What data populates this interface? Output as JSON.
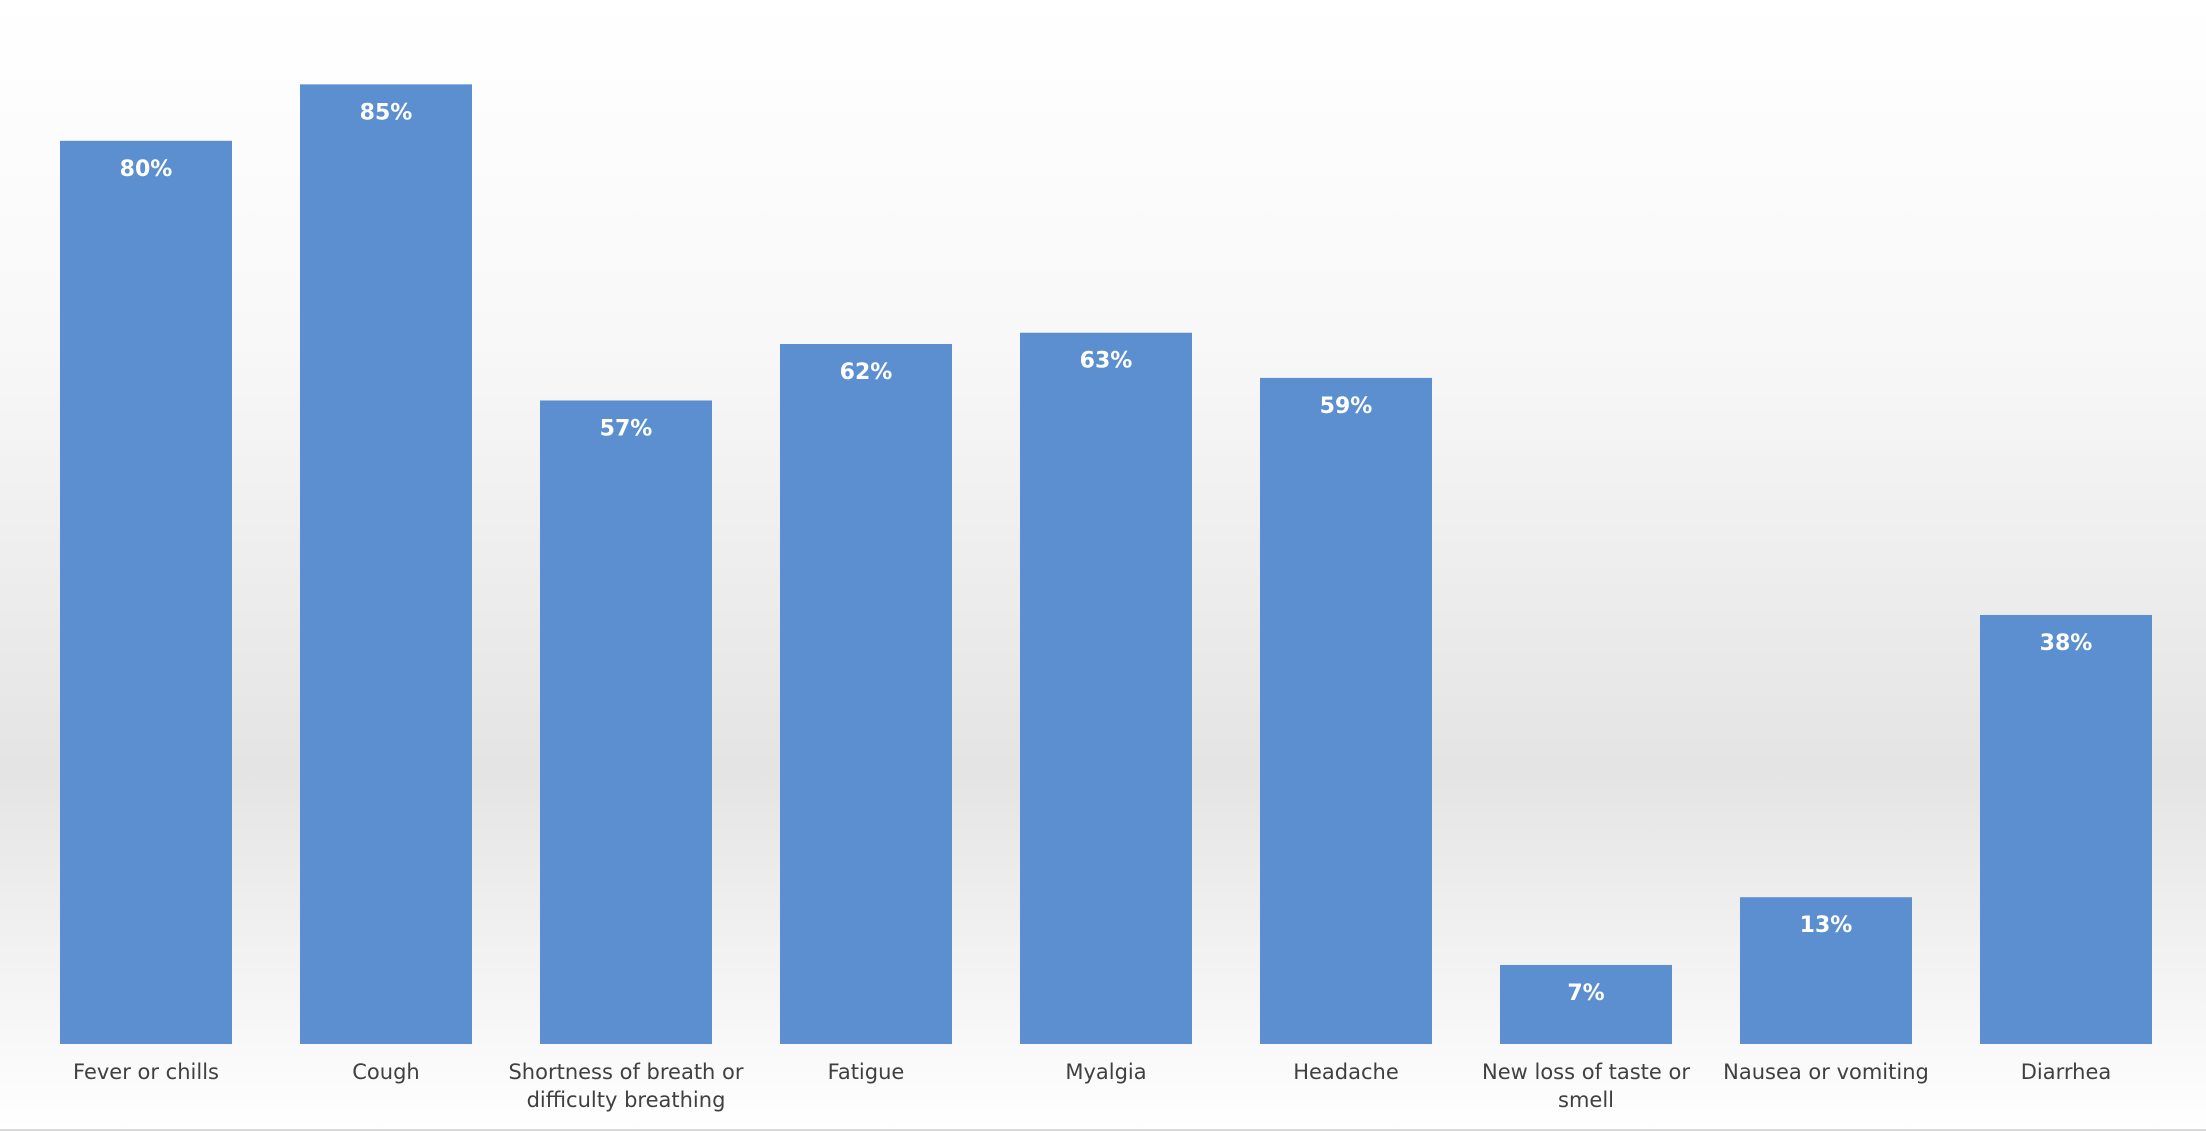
{
  "chart_data": {
    "type": "bar",
    "categories": [
      "Fever or chills",
      "Cough",
      "Shortness of breath or difficulty breathing",
      "Fatigue",
      "Myalgia",
      "Headache",
      "New loss of taste or smell",
      "Nausea or vomiting",
      "Diarrhea"
    ],
    "values": [
      80,
      85,
      57,
      62,
      63,
      59,
      7,
      13,
      38
    ],
    "value_labels": [
      "80%",
      "85%",
      "57%",
      "62%",
      "63%",
      "59%",
      "7%",
      "13%",
      "38%"
    ],
    "color": "#5b8fd0"
  }
}
